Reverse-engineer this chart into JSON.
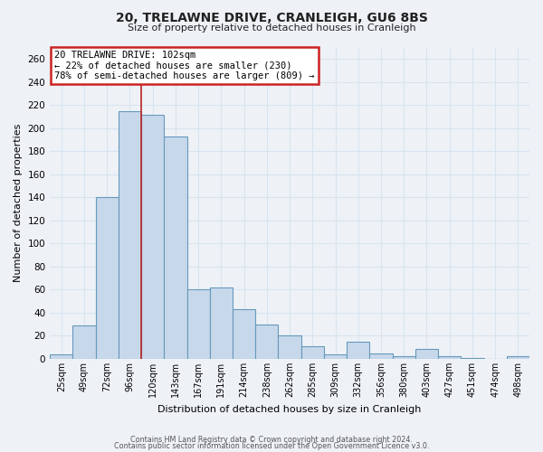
{
  "title": "20, TRELAWNE DRIVE, CRANLEIGH, GU6 8BS",
  "subtitle": "Size of property relative to detached houses in Cranleigh",
  "xlabel": "Distribution of detached houses by size in Cranleigh",
  "ylabel": "Number of detached properties",
  "bar_labels": [
    "25sqm",
    "49sqm",
    "72sqm",
    "96sqm",
    "120sqm",
    "143sqm",
    "167sqm",
    "191sqm",
    "214sqm",
    "238sqm",
    "262sqm",
    "285sqm",
    "309sqm",
    "332sqm",
    "356sqm",
    "380sqm",
    "403sqm",
    "427sqm",
    "451sqm",
    "474sqm",
    "498sqm"
  ],
  "bar_values": [
    4,
    29,
    140,
    215,
    212,
    193,
    60,
    62,
    43,
    30,
    20,
    11,
    4,
    15,
    5,
    2,
    9,
    2,
    1,
    0,
    2
  ],
  "bar_color": "#c8d8eb",
  "bar_edge_color": "#6699bb",
  "ylim": [
    0,
    270
  ],
  "yticks": [
    0,
    20,
    40,
    60,
    80,
    100,
    120,
    140,
    160,
    180,
    200,
    220,
    240,
    260
  ],
  "vline_after_index": 3,
  "vline_color": "#bb2222",
  "annotation_title": "20 TRELAWNE DRIVE: 102sqm",
  "annotation_line1": "← 22% of detached houses are smaller (230)",
  "annotation_line2": "78% of semi-detached houses are larger (809) →",
  "annotation_box_color": "#ffffff",
  "annotation_box_edge": "#cc2222",
  "background_color": "#eef2f7",
  "grid_color": "#d8e4f0",
  "footer1": "Contains HM Land Registry data © Crown copyright and database right 2024.",
  "footer2": "Contains public sector information licensed under the Open Government Licence v3.0."
}
